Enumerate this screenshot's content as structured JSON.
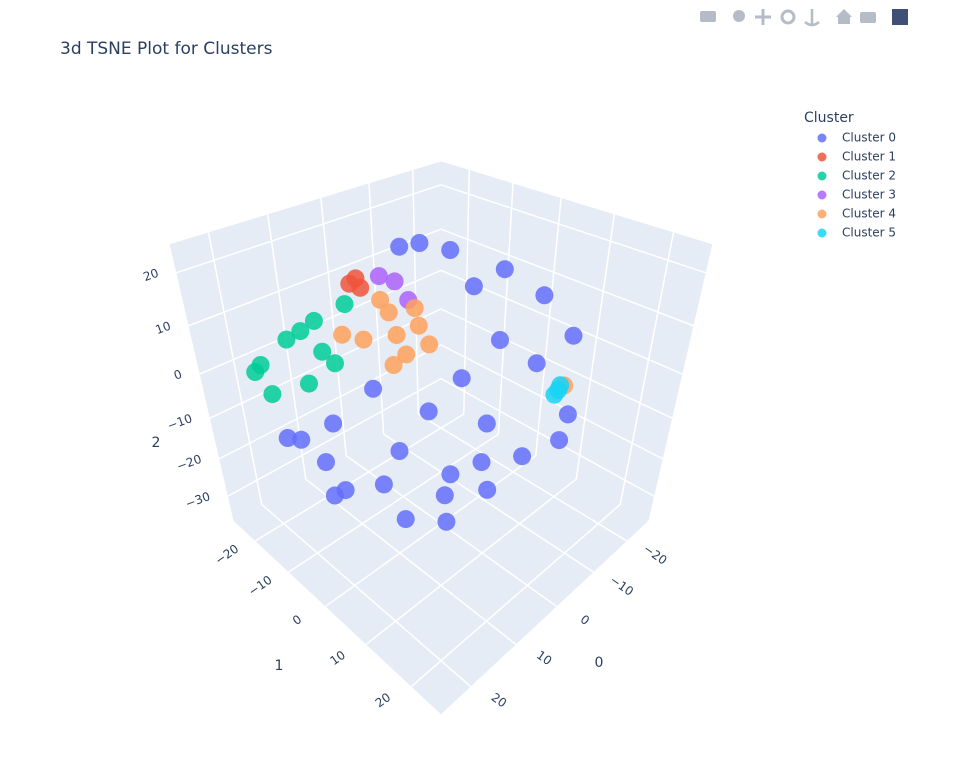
{
  "chart_data": {
    "type": "scatter3d",
    "title": "3d TSNE Plot for Clusters",
    "xlabel": "0",
    "ylabel": "1",
    "zlabel": "2",
    "xlim": [
      -27,
      26
    ],
    "ylim": [
      -27,
      26
    ],
    "zlim": [
      -37,
      25
    ],
    "xticks": [
      {
        "value": -20,
        "label": "−20"
      },
      {
        "value": -10,
        "label": "−10"
      },
      0,
      10,
      20
    ],
    "yticks": [
      {
        "value": -20,
        "label": "−20"
      },
      {
        "value": -10,
        "label": "−10"
      },
      0,
      10,
      20
    ],
    "zticks": [
      {
        "value": -30,
        "label": "−30"
      },
      {
        "value": -20,
        "label": "−20"
      },
      {
        "value": -10,
        "label": "−10"
      },
      0,
      10,
      20
    ],
    "grid": true,
    "legend_title": "Cluster",
    "legend_position": "top-right",
    "series": [
      {
        "name": "Cluster 0",
        "color": "#636efa",
        "x": [
          -4.1,
          -8.8,
          -9.5,
          -7.0,
          -0.9,
          0.5,
          -2.2,
          -7.3,
          12.2,
          10.4,
          6.8,
          21.4,
          1.2,
          -11.1,
          17.6,
          18.2,
          8.4,
          6.7,
          -4.2,
          -11.5,
          -18.1,
          1.3,
          13.3,
          7.8,
          10.8,
          2.4,
          -3.6,
          2.8,
          15.4,
          20.6
        ],
        "y": [
          -13.3,
          -6.8,
          3.7,
          13.0,
          22.4,
          18.2,
          4.3,
          -12.1,
          -1.6,
          8.0,
          15.5,
          0.9,
          5.5,
          2.2,
          -14.0,
          -6.8,
          -0.8,
          8.7,
          13.6,
          15.2,
          12.0,
          10.1,
          -9.4,
          -5.9,
          2.8,
          3.3,
          7.4,
          4.1,
          -9.6,
          -12.9
        ],
        "z": [
          18.8,
          18.8,
          18.8,
          18.8,
          18.8,
          12.6,
          18.8,
          18.8,
          3.3,
          3.3,
          3.3,
          3.3,
          3.3,
          3.3,
          -12.2,
          -12.2,
          -12.2,
          -12.2,
          -12.2,
          -12.2,
          -12.2,
          -12.2,
          -24.6,
          -24.6,
          -24.6,
          -24.6,
          -24.6,
          -30.8,
          -24.6,
          -9.1
        ]
      },
      {
        "name": "Cluster 1",
        "color": "#EF553B",
        "x": [
          1.1,
          2.7,
          3.0
        ],
        "y": [
          -18.2,
          -15.1,
          -17.4
        ],
        "z": [
          12.6,
          12.6,
          12.6
        ]
      },
      {
        "name": "Cluster 2",
        "color": "#00cc96",
        "x": [
          4.8,
          11.5,
          17.7,
          24.2,
          23.2,
          17.9,
          11.8,
          23.7,
          14.8,
          13.6
        ],
        "y": [
          -16.7,
          -15.7,
          -14.0,
          -10.8,
          -10.7,
          -9.2,
          -10.9,
          -13.6,
          -14.6,
          -11.3
        ],
        "z": [
          9.5,
          9.5,
          9.5,
          9.5,
          3.3,
          3.3,
          3.3,
          6.4,
          9.5,
          6.4
        ]
      },
      {
        "name": "Cluster 3",
        "color": "#ab63fa",
        "x": [
          -2.1,
          0.2,
          -2.6
        ],
        "y": [
          -16.2,
          -6.8,
          -13.0
        ],
        "z": [
          12.6,
          12.6,
          12.6
        ]
      },
      {
        "name": "Cluster 4",
        "color": "#FFA15A",
        "x": [
          5.5,
          1.3,
          8.2,
          4.0,
          1.7,
          11.1,
          11.3,
          -0.1,
          -2.1,
          9.8,
          -1.2
        ],
        "y": [
          -3.7,
          -3.4,
          1.3,
          1.6,
          -9.7,
          -9.4,
          2.1,
          -13.8,
          -7.9,
          -6.1,
          21.7
        ],
        "z": [
          9.5,
          9.5,
          9.5,
          9.5,
          9.5,
          9.5,
          9.5,
          9.5,
          9.5,
          9.5,
          9.5
        ]
      },
      {
        "name": "Cluster 5",
        "color": "#19d3f3",
        "x": [
          0.2,
          -0.9,
          1.4
        ],
        "y": [
          21.8,
          21.3,
          22.1
        ],
        "z": [
          9.5,
          9.5,
          9.5
        ]
      }
    ]
  }
}
